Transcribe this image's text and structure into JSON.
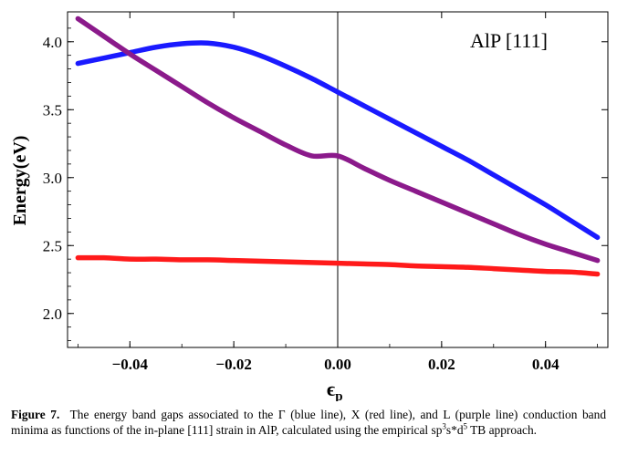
{
  "chart_data": {
    "type": "line",
    "title": "",
    "annotation": "AlP [111]",
    "xlabel": "ϵp",
    "xlabel_main": "ϵ",
    "xlabel_sub": "p",
    "ylabel": "Energy(eV)",
    "xlim": [
      -0.052,
      0.052
    ],
    "ylim": [
      1.75,
      4.22
    ],
    "x_ticks": [
      -0.04,
      -0.02,
      0.0,
      0.02,
      0.04
    ],
    "x_tick_labels": [
      "−0.04",
      "−0.02",
      "0.00",
      "0.02",
      "0.04"
    ],
    "y_ticks": [
      2.0,
      2.5,
      3.0,
      3.5,
      4.0
    ],
    "y_tick_labels": [
      "2.0",
      "2.5",
      "3.0",
      "3.5",
      "4.0"
    ],
    "vertical_line_x": 0.0,
    "x": [
      -0.05,
      -0.045,
      -0.04,
      -0.035,
      -0.03,
      -0.025,
      -0.02,
      -0.015,
      -0.01,
      -0.005,
      0.0,
      0.005,
      0.01,
      0.015,
      0.02,
      0.025,
      0.03,
      0.035,
      0.04,
      0.045,
      0.05
    ],
    "series": [
      {
        "name": "Γ",
        "color": "#1a1aff",
        "values": [
          3.84,
          3.88,
          3.92,
          3.96,
          3.985,
          3.99,
          3.96,
          3.9,
          3.82,
          3.73,
          3.63,
          3.53,
          3.43,
          3.33,
          3.23,
          3.13,
          3.02,
          2.91,
          2.8,
          2.68,
          2.56
        ]
      },
      {
        "name": "X",
        "color": "#ff1a1a",
        "values": [
          2.41,
          2.41,
          2.4,
          2.4,
          2.395,
          2.395,
          2.39,
          2.385,
          2.38,
          2.375,
          2.37,
          2.365,
          2.36,
          2.35,
          2.345,
          2.34,
          2.33,
          2.32,
          2.31,
          2.305,
          2.29
        ]
      },
      {
        "name": "L",
        "color": "#8b1a8b",
        "values": [
          4.17,
          4.04,
          3.91,
          3.79,
          3.67,
          3.55,
          3.44,
          3.34,
          3.24,
          3.16,
          3.16,
          3.07,
          2.98,
          2.9,
          2.82,
          2.74,
          2.66,
          2.58,
          2.51,
          2.45,
          2.39
        ]
      }
    ]
  },
  "caption": {
    "figure_label": "Figure 7.",
    "text_main": "The energy band gaps associated to the Γ (blue line), X (red line), and L (purple line) conduction band minima as functions of the in-plane [111] strain in AlP, calculated using the empirical sp",
    "sup1": "3",
    "text_mid": "s*d",
    "sup2": "5",
    "text_end": " TB approach."
  }
}
